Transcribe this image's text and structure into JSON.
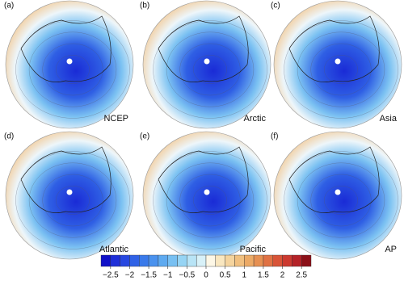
{
  "panels": [
    {
      "label": "(a)",
      "name": "NCEP"
    },
    {
      "label": "(b)",
      "name": "Arctic"
    },
    {
      "label": "(c)",
      "name": "Asia"
    },
    {
      "label": "(d)",
      "name": "Atlantic"
    },
    {
      "label": "(e)",
      "name": "Pacific"
    },
    {
      "label": "(f)",
      "name": "AP"
    }
  ],
  "colorbar": {
    "xlim": [
      -2.75,
      2.75
    ],
    "ticks": [
      {
        "value": -2.5,
        "label": "−2.5"
      },
      {
        "value": -2,
        "label": "−2"
      },
      {
        "value": -1.5,
        "label": "−1.5"
      },
      {
        "value": -1,
        "label": "−1"
      },
      {
        "value": -0.5,
        "label": "−0.5"
      },
      0,
      0.5,
      1,
      1.5,
      2,
      2.5
    ],
    "colors": [
      "#1010c8",
      "#1f2fd8",
      "#2848e0",
      "#3062e6",
      "#3a7aea",
      "#4a92ee",
      "#5eaaf0",
      "#78c0f2",
      "#96d4f4",
      "#b8e4f6",
      "#d8f1f8",
      "#fdf7e6",
      "#f9e7c0",
      "#f5d49e",
      "#f1c080",
      "#ecaa66",
      "#e69052",
      "#e07244",
      "#d85438",
      "#cc3a30",
      "#b42228",
      "#8c1018"
    ]
  }
}
